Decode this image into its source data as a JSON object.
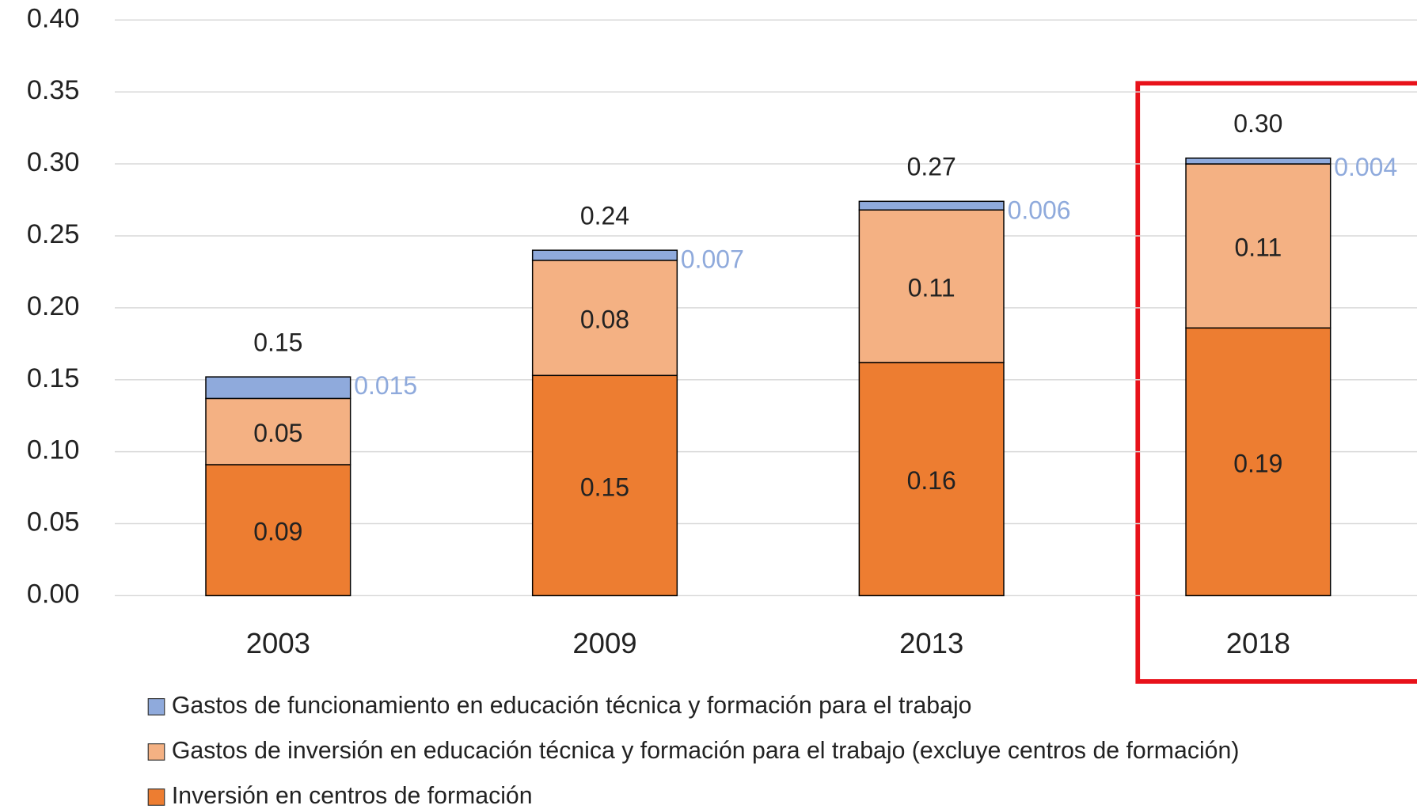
{
  "chart_data": {
    "type": "stacked_bar",
    "categories": [
      "2003",
      "2009",
      "2013",
      "2018"
    ],
    "series": [
      {
        "name": "Inversión en centros de formación",
        "color": "#ed7d31",
        "values": [
          0.091,
          0.153,
          0.162,
          0.186
        ],
        "value_labels": [
          "0.09",
          "0.15",
          "0.16",
          "0.19"
        ]
      },
      {
        "name": "Gastos de inversión en educación técnica y formación para el trabajo (excluye centros de formación)",
        "color": "#f4b183",
        "values": [
          0.046,
          0.08,
          0.106,
          0.114
        ],
        "value_labels": [
          "0.05",
          "0.08",
          "0.11",
          "0.11"
        ]
      },
      {
        "name": "Gastos de funcionamiento en educación técnica y formación para el trabajo",
        "color": "#8faadc",
        "values": [
          0.015,
          0.007,
          0.006,
          0.004
        ],
        "value_labels": [
          "0.015",
          "0.007",
          "0.006",
          "0.004"
        ]
      }
    ],
    "total_labels": [
      "0.15",
      "0.24",
      "0.27",
      "0.30"
    ],
    "ylim": [
      0,
      0.4
    ],
    "yticks": [
      {
        "value": 0,
        "label": "0.00"
      },
      {
        "value": 0.05,
        "label": "0.05"
      },
      {
        "value": 0.1,
        "label": "0.10"
      },
      {
        "value": 0.15,
        "label": "0.15"
      },
      {
        "value": 0.2,
        "label": "0.20"
      },
      {
        "value": 0.25,
        "label": "0.25"
      },
      {
        "value": 0.3,
        "label": "0.30"
      },
      {
        "value": 0.35,
        "label": "0.35"
      },
      {
        "value": 0.4,
        "label": "0.40"
      }
    ],
    "grid": true
  }
}
